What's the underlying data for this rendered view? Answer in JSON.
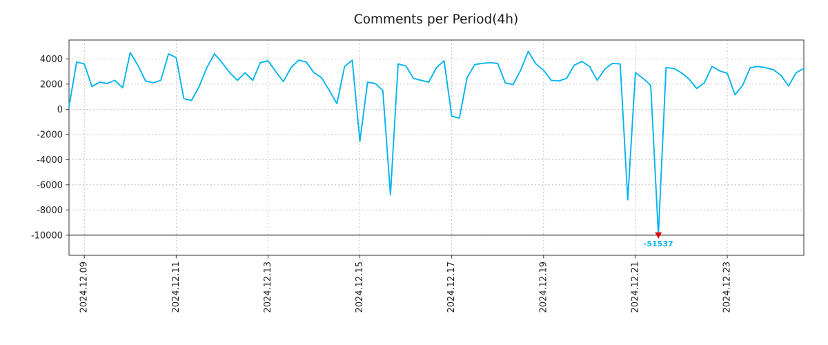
{
  "title": "Comments per Period(4h)",
  "chart_data": {
    "type": "line",
    "title": "Comments per Period(4h)",
    "xlabel": "",
    "ylabel": "",
    "line_color": "#00b4f0",
    "ylim": [
      -11600,
      5500
    ],
    "clip_value": -10000,
    "grid": true,
    "period_hours": 4,
    "y_ticks": [
      4000,
      2000,
      0,
      -2000,
      -4000,
      -6000,
      -8000,
      -10000
    ],
    "x_tick_indices": [
      2,
      14,
      26,
      38,
      50,
      62,
      74,
      86
    ],
    "x_tick_labels": [
      "2024.12.09",
      "2024.12.11",
      "2024.12.13",
      "2024.12.15",
      "2024.12.17",
      "2024.12.19",
      "2024.12.21",
      "2024.12.23"
    ],
    "values": [
      200,
      3750,
      3600,
      1800,
      2150,
      2050,
      2300,
      1700,
      4500,
      3500,
      2250,
      2100,
      2300,
      4400,
      4100,
      850,
      700,
      1800,
      3300,
      4400,
      3700,
      2900,
      2300,
      2900,
      2300,
      3700,
      3850,
      3000,
      2200,
      3300,
      3900,
      3750,
      2900,
      2500,
      1500,
      450,
      3400,
      3900,
      -2550,
      2150,
      2050,
      1500,
      -6800,
      3600,
      3450,
      2450,
      2300,
      2150,
      3300,
      3850,
      -550,
      -700,
      2500,
      3550,
      3650,
      3700,
      3650,
      2100,
      1950,
      3100,
      4600,
      3600,
      3100,
      2300,
      2250,
      2450,
      3500,
      3800,
      3400,
      2300,
      3200,
      3650,
      3600,
      -7200,
      2900,
      2450,
      1900,
      -51537,
      3300,
      3250,
      2900,
      2400,
      1650,
      2100,
      3400,
      3050,
      2850,
      1150,
      1900,
      3300,
      3400,
      3300,
      3150,
      2700,
      1850,
      2900,
      3250
    ],
    "annotation": {
      "index": 77,
      "value": -51537,
      "label": "-51537",
      "marker": "triangle-down",
      "marker_color": "#e00000",
      "label_color": "#00b4f0"
    }
  }
}
